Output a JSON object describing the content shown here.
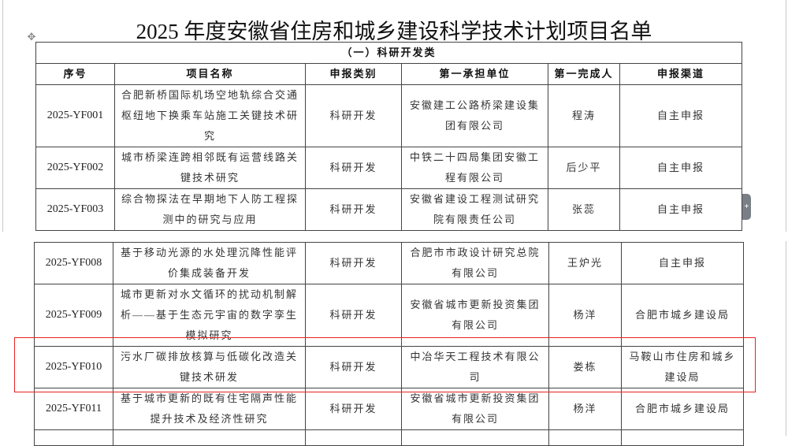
{
  "title": "2025 年度安徽省住房和城乡建设科学技术计划项目名单",
  "section": "（一）科研开发类",
  "headers": [
    "序号",
    "项目名称",
    "申报类别",
    "第一承担单位",
    "第一完成人",
    "申报渠道"
  ],
  "rows_page1": [
    {
      "id": "2025-YF001",
      "name": "合肥新桥国际机场空地轨综合交通枢纽地下换乘车站施工关键技术研究",
      "category": "科研开发",
      "unit": "安徽建工公路桥梁建设集团有限公司",
      "person": "程涛",
      "channel": "自主申报"
    },
    {
      "id": "2025-YF002",
      "name": "城市桥梁连跨相邻既有运营线路关键技术研究",
      "category": "科研开发",
      "unit": "中铁二十四局集团安徽工程有限公司",
      "person": "后少平",
      "channel": "自主申报"
    },
    {
      "id": "2025-YF003",
      "name": "综合物探法在早期地下人防工程探测中的研究与应用",
      "category": "科研开发",
      "unit": "安徽省建设工程测试研究院有限责任公司",
      "person": "张蕊",
      "channel": "自主申报"
    }
  ],
  "rows_page2": [
    {
      "id": "2025-YF008",
      "name": "基于移动光源的水处理沉降性能评价集成装备开发",
      "category": "科研开发",
      "unit": "合肥市市政设计研究总院有限公司",
      "person": "王炉光",
      "channel": "自主申报"
    },
    {
      "id": "2025-YF009",
      "name": "城市更新对水文循环的扰动机制解析——基于生态元宇宙的数字孪生模拟研究",
      "category": "科研开发",
      "unit": "安徽省城市更新投资集团有限公司",
      "person": "杨洋",
      "channel": "合肥市城乡建设局"
    },
    {
      "id": "2025-YF010",
      "name": "污水厂碳排放核算与低碳化改造关键技术研发",
      "category": "科研开发",
      "unit": "中冶华天工程技术有限公司",
      "person": "娄栋",
      "channel": "马鞍山市住房和城乡建设局"
    },
    {
      "id": "2025-YF011",
      "name": "基于城市更新的既有住宅隔声性能提升技术及经济性研究",
      "category": "科研开发",
      "unit": "安徽省城市更新投资集团有限公司",
      "person": "杨洋",
      "channel": "合肥市城乡建设局"
    }
  ],
  "highlight_color": "#e8231f"
}
